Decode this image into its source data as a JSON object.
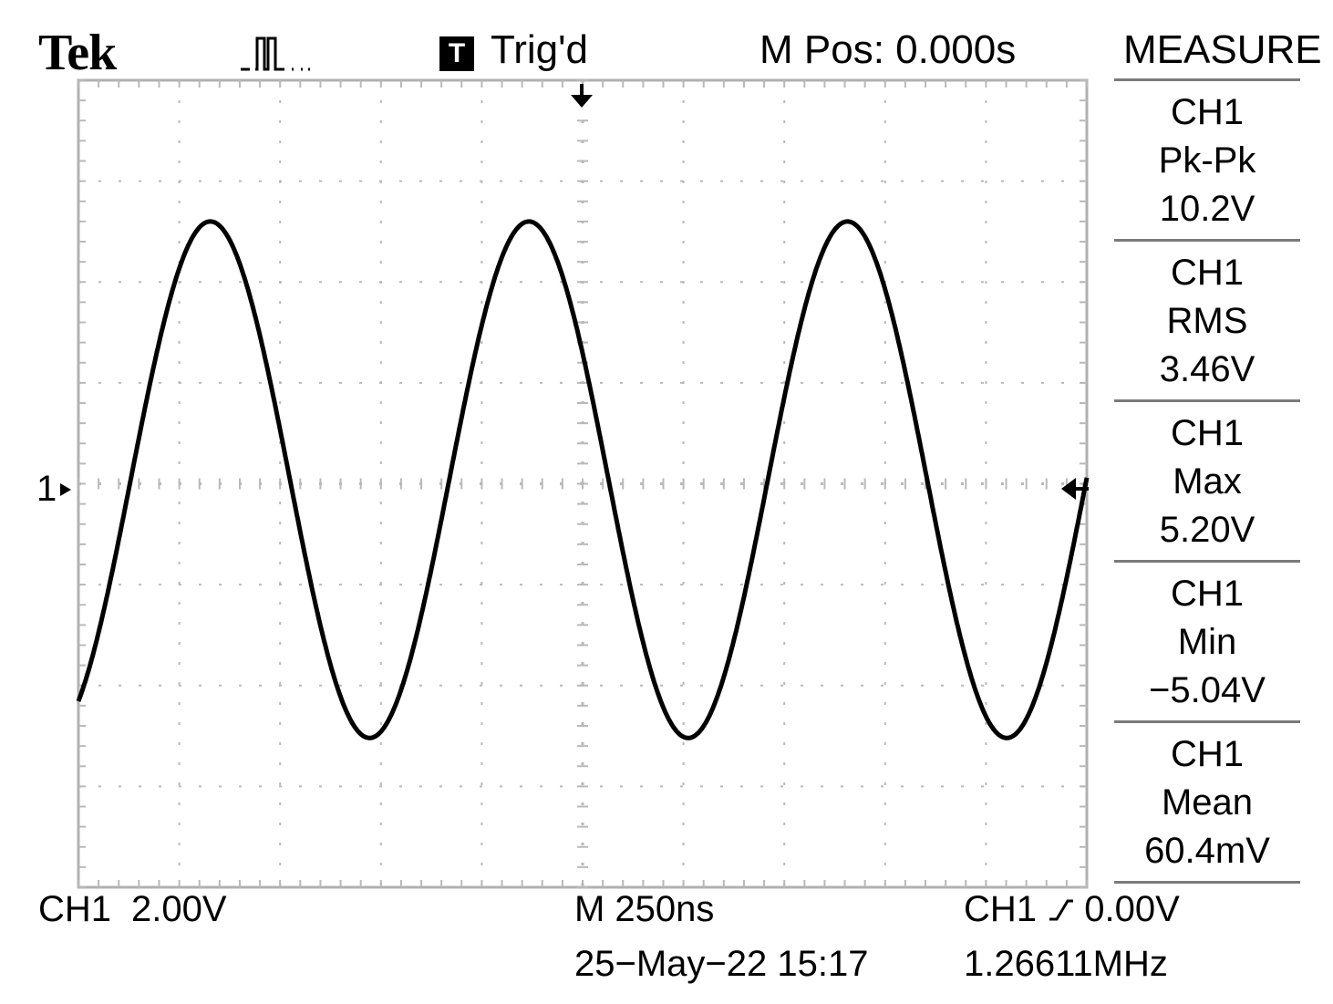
{
  "header": {
    "brand": "Tek",
    "acquire_icon": "run-pulse-icon",
    "trigger_badge": "T",
    "trigger_status": "Trig'd",
    "main_position": "M Pos: 0.000s"
  },
  "side_menu": {
    "title": "MEASURE",
    "measurements": [
      {
        "source": "CH1",
        "type": "Pk-Pk",
        "value": "10.2V"
      },
      {
        "source": "CH1",
        "type": "RMS",
        "value": "3.46V"
      },
      {
        "source": "CH1",
        "type": "Max",
        "value": "5.20V"
      },
      {
        "source": "CH1",
        "type": "Min",
        "value": "−5.04V"
      },
      {
        "source": "CH1",
        "type": "Mean",
        "value": "60.4mV"
      }
    ]
  },
  "display": {
    "channel_marker": "1",
    "trigger_position_icon": "trigger-position-arrow-icon",
    "trigger_level_icon": "trigger-level-arrow-icon",
    "waveform": {
      "channel": "CH1",
      "shape": "sine",
      "amplitude_V": 5.12,
      "offset_V": 0.08,
      "frequency_Hz": 1266110,
      "volts_per_div": 2.0,
      "seconds_per_div": 2.5e-07,
      "phase_rad": 2.63
    }
  },
  "footer": {
    "ch_label": "CH1",
    "ch_scale": "2.00V",
    "timebase": "M 250ns",
    "trigger_source": "CH1",
    "trigger_slope_icon": "rising-edge-icon",
    "trigger_level": "0.00V",
    "datetime": "25−May−22 15:17",
    "frequency": "1.26611MHz"
  }
}
